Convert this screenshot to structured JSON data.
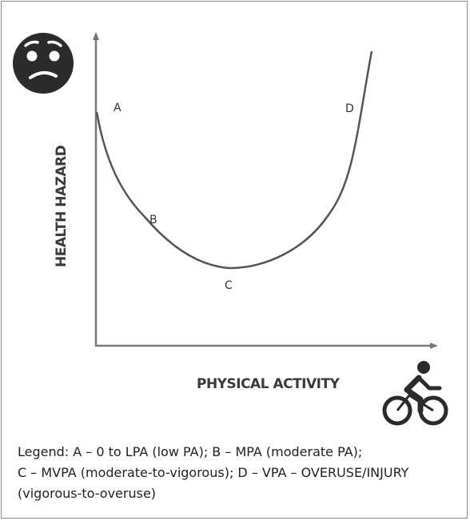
{
  "diagram": {
    "y_axis_label": "HEALTH HAZARD",
    "x_axis_label": "PHYSICAL ACTIVITY",
    "points": {
      "a": "A",
      "b": "B",
      "c": "C",
      "d": "D"
    },
    "icons": {
      "top_left": "worried-face-icon",
      "bottom_right": "cyclist-icon"
    },
    "colors": {
      "curve": "#555555",
      "axis": "#777777",
      "icon": "#2b2b2b"
    }
  },
  "legend": {
    "line1": "Legend: A – 0 to LPA (low PA); B – MPA (moderate PA);",
    "line2": "C – MVPA (moderate-to-vigorous); D – VPA – OVERUSE/INJURY",
    "line3": "(vigorous-to-overuse)"
  }
}
